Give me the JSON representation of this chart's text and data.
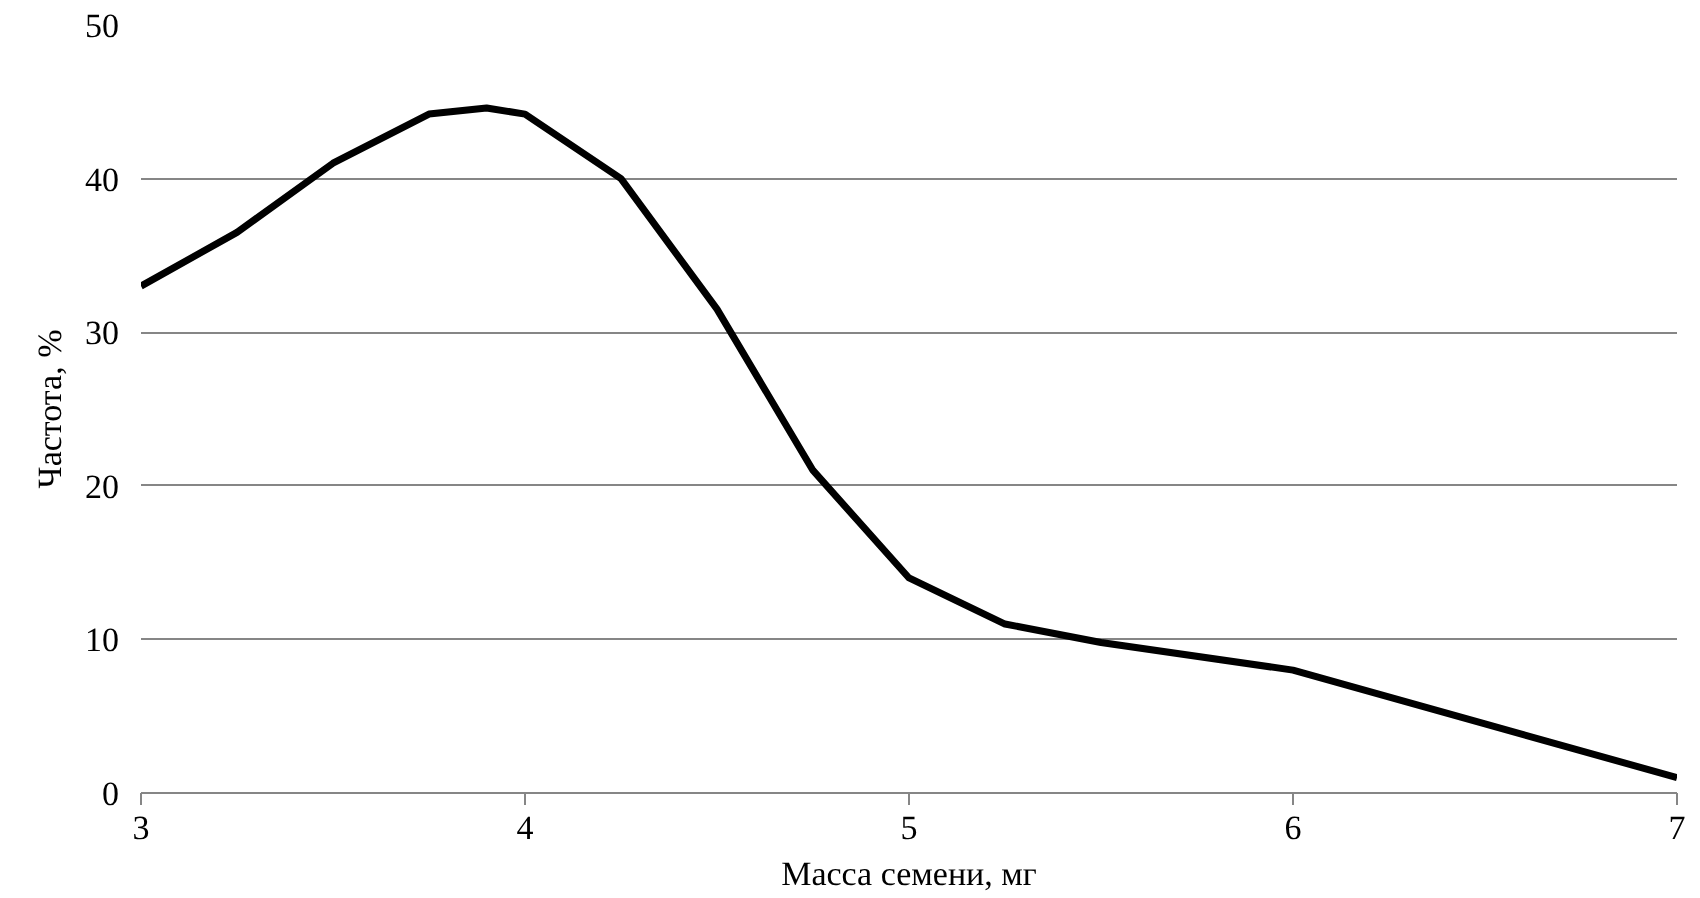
{
  "chart_data": {
    "type": "line",
    "xlabel": "Масса семени, мг",
    "ylabel": "Частота, %",
    "x": [
      3,
      3.25,
      3.5,
      3.75,
      3.9,
      4,
      4.25,
      4.5,
      4.75,
      5,
      5.25,
      5.5,
      6,
      6.5,
      7
    ],
    "series": [
      {
        "color": "#000000",
        "values": [
          33,
          36.5,
          41,
          44.2,
          44.6,
          44.2,
          40,
          31.5,
          21,
          14,
          11,
          9.8,
          8,
          4.5,
          1
        ]
      }
    ],
    "xlim": [
      3,
      7
    ],
    "ylim": [
      0,
      50
    ],
    "xticks": [
      3,
      4,
      5,
      6,
      7
    ],
    "yticks": [
      0,
      10,
      20,
      30,
      40,
      50
    ],
    "grid": "y",
    "marker": "none",
    "line_style": "solid"
  }
}
